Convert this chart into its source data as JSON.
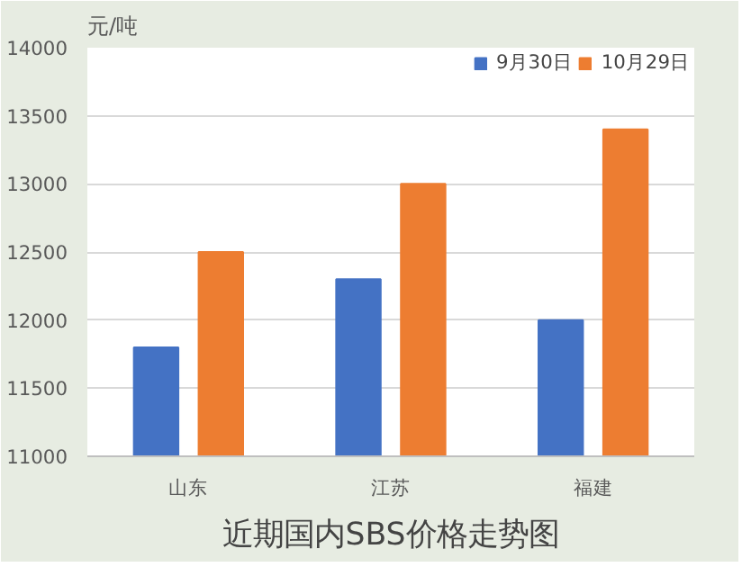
{
  "chart_data": {
    "type": "bar",
    "title": "近期国内SBS价格走势图",
    "ylabel": "元/吨",
    "categories": [
      "山东",
      "江苏",
      "福建"
    ],
    "series": [
      {
        "name": "9月30日",
        "color": "#4472c4",
        "values": [
          11800,
          12300,
          12000
        ]
      },
      {
        "name": "10月29日",
        "color": "#ed7d31",
        "values": [
          12500,
          13000,
          13400
        ]
      }
    ],
    "ylim": [
      11000,
      14000
    ],
    "yticks": [
      11000,
      11500,
      12000,
      12500,
      13000,
      13500,
      14000
    ],
    "grid": "y",
    "legend": "top right"
  }
}
